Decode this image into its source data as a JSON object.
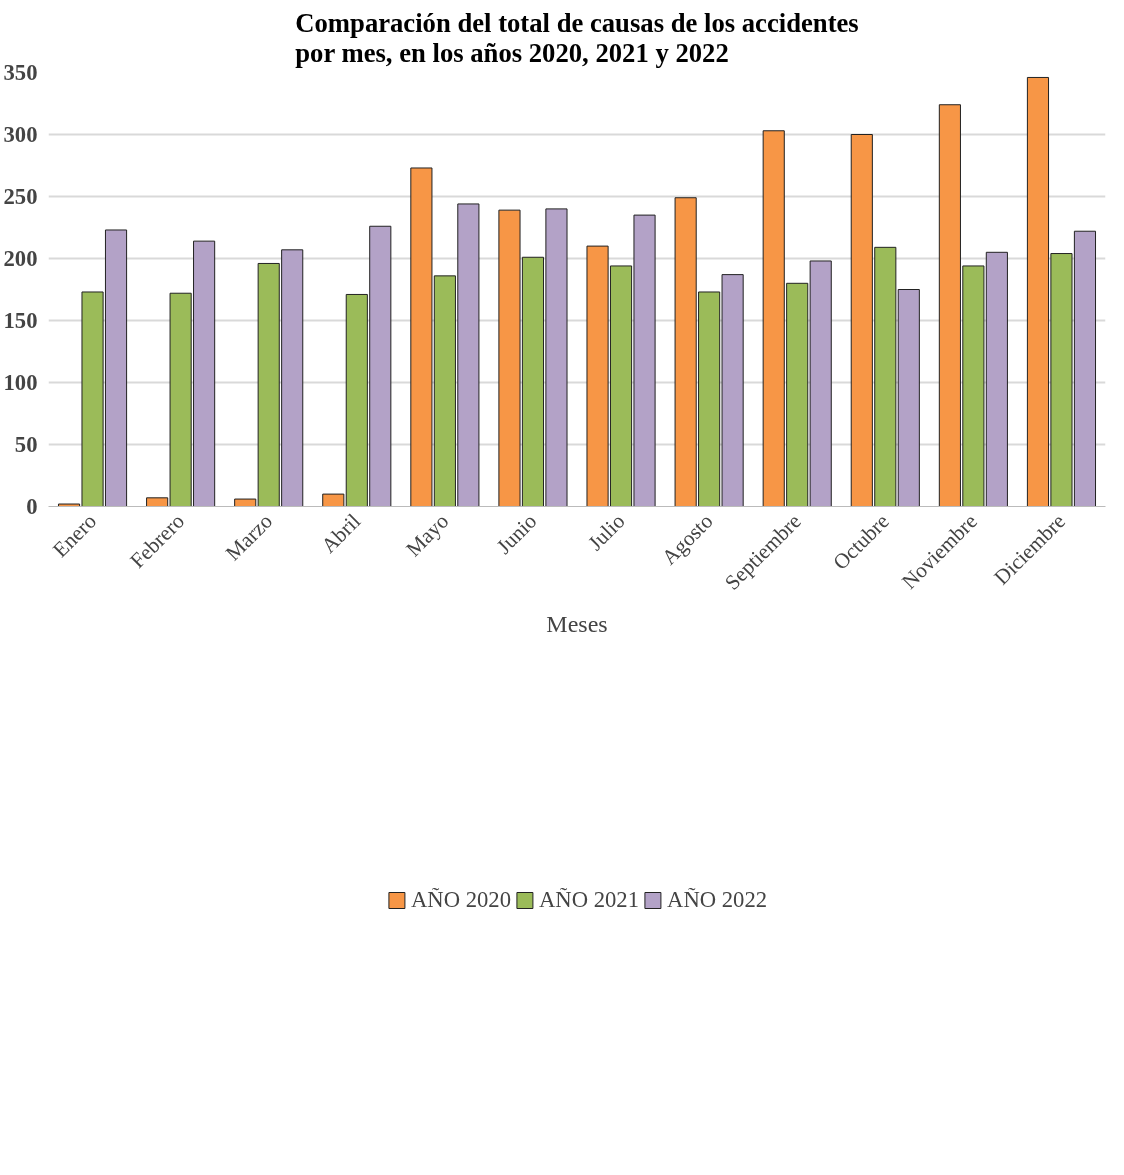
{
  "chart_data": {
    "type": "bar",
    "title": "Comparación del total de causas de los accidentes por mes, en los años 2020, 2021 y 2022",
    "xlabel": "Meses",
    "categories": [
      "Enero",
      "Febrero",
      "Marzo",
      "Abril",
      "Mayo",
      "Junio",
      "Julio",
      "Agosto",
      "Septiembre",
      "Octubre",
      "Noviembre",
      "Diciembre"
    ],
    "series": [
      {
        "name": "AÑO 2020",
        "color": "#f79646",
        "values": [
          2,
          7,
          6,
          10,
          273,
          239,
          210,
          249,
          303,
          300,
          324,
          346
        ]
      },
      {
        "name": "AÑO 2021",
        "color": "#9bbb59",
        "values": [
          173,
          172,
          196,
          171,
          186,
          201,
          194,
          173,
          180,
          209,
          194,
          204
        ]
      },
      {
        "name": "AÑO 2022",
        "color": "#b3a2c7",
        "values": [
          223,
          214,
          207,
          226,
          244,
          240,
          235,
          187,
          198,
          175,
          205,
          222
        ]
      }
    ],
    "ylim": [
      0,
      350
    ],
    "yticks": [
      0,
      50,
      100,
      150,
      200,
      250,
      300,
      350
    ],
    "grid": "y",
    "legend": "bottom"
  }
}
